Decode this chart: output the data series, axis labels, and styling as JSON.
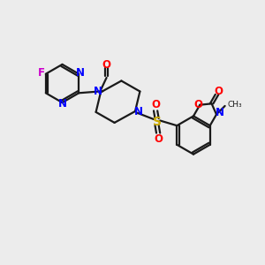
{
  "background_color": "#ececec",
  "bond_color": "#1a1a1a",
  "nitrogen_color": "#0000ff",
  "oxygen_color": "#ff0000",
  "sulfur_color": "#ccaa00",
  "fluorine_color": "#cc00cc",
  "figsize": [
    3.0,
    3.0
  ],
  "dpi": 100,
  "xlim": [
    0,
    10
  ],
  "ylim": [
    0,
    10
  ]
}
